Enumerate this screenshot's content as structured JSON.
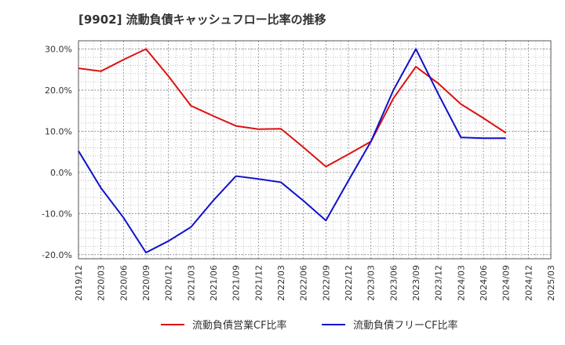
{
  "chart_data": {
    "type": "line",
    "title": "[9902]  流動負債キャッシュフロー比率の推移",
    "xlabel": "",
    "ylabel": "",
    "categories": [
      "2019/12",
      "2020/03",
      "2020/06",
      "2020/09",
      "2020/12",
      "2021/03",
      "2021/06",
      "2021/09",
      "2021/12",
      "2022/03",
      "2022/06",
      "2022/09",
      "2022/12",
      "2023/03",
      "2023/06",
      "2023/09",
      "2023/12",
      "2024/03",
      "2024/06",
      "2024/09",
      "2024/12",
      "2025/03"
    ],
    "y_ticks": [
      "30.0%",
      "20.0%",
      "10.0%",
      "0.0%",
      "-10.0%",
      "-20.0%"
    ],
    "ylim": [
      -21,
      32
    ],
    "grid": true,
    "legend_position": "bottom",
    "series": [
      {
        "name": "流動負債営業CF比率",
        "color": "#dd1111",
        "values": [
          25.3,
          24.6,
          27.4,
          30.0,
          23.4,
          16.2,
          13.7,
          11.3,
          10.5,
          10.6,
          6.1,
          1.4,
          4.4,
          7.5,
          18.0,
          25.7,
          21.6,
          16.6,
          13.2,
          9.6,
          null,
          null
        ]
      },
      {
        "name": "流動負債フリーCF比率",
        "color": "#1111cc",
        "values": [
          5.2,
          -3.8,
          -11.0,
          -19.5,
          -16.7,
          -13.3,
          -6.8,
          -0.9,
          -1.6,
          -2.4,
          -6.9,
          -11.7,
          -2.0,
          7.5,
          20.0,
          30.0,
          19.0,
          8.5,
          8.3,
          8.3,
          null,
          null
        ]
      }
    ]
  }
}
